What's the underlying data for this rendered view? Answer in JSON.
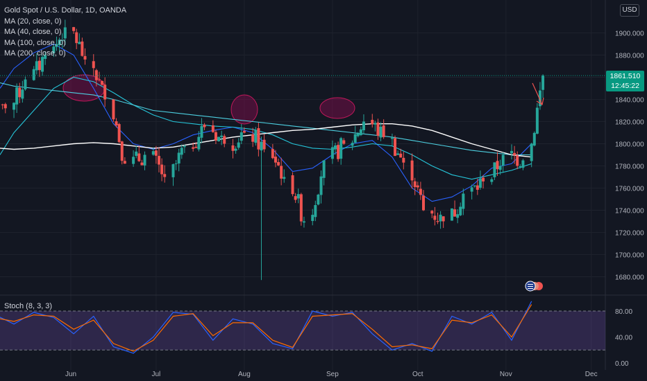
{
  "header": {
    "title": "Gold Spot / U.S. Dollar, 1D, OANDA",
    "currency": "USD",
    "price_tag": "1861.510",
    "countdown": "12:45:22",
    "stoch_label": "Stoch (8, 3, 3)"
  },
  "legend": [
    {
      "label": "MA (20, close, 0)",
      "color": "#2962ff"
    },
    {
      "label": "MA (40, close, 0)",
      "color": "#26c6da"
    },
    {
      "label": "MA (100, close, 0)",
      "color": "#4dd0e1"
    },
    {
      "label": "MA (200, close, 0)",
      "color": "#ffffff"
    }
  ],
  "colors": {
    "background": "#131722",
    "up": "#26a69a",
    "down": "#ef5350",
    "grid": "#1e222d",
    "price_line": "#089981",
    "stoch_fill": "#7e57c2"
  },
  "chart_data": [
    {
      "type": "candlestick",
      "title": "Gold Spot / U.S. Dollar, 1D, OANDA",
      "x_tick_labels": [
        "Jun",
        "Jul",
        "Aug",
        "Sep",
        "Oct",
        "Nov",
        "Dec"
      ],
      "y_tick_labels": [
        "1680.000",
        "1700.000",
        "1720.000",
        "1740.000",
        "1760.000",
        "1780.000",
        "1800.000",
        "1820.000",
        "1840.000",
        "1860.000",
        "1880.000",
        "1900.000"
      ],
      "ylim": [
        1665,
        1925
      ],
      "last_price": 1861.51,
      "x": [
        "2023-05-05",
        "2023-05-12",
        "2023-05-19",
        "2023-05-26",
        "2023-06-02",
        "2023-06-09",
        "2023-06-16",
        "2023-06-23",
        "2023-06-30",
        "2023-07-07",
        "2023-07-14",
        "2023-07-21",
        "2023-07-28",
        "2023-08-04",
        "2023-08-11",
        "2023-08-18",
        "2023-08-25",
        "2023-09-01",
        "2023-09-08",
        "2023-09-15",
        "2023-09-22",
        "2023-09-29",
        "2023-10-06",
        "2023-10-13",
        "2023-10-20",
        "2023-10-27",
        "2023-11-03",
        "2023-11-10"
      ],
      "close_weekly_approx": [
        1832,
        1858,
        1880,
        1905,
        1876,
        1840,
        1782,
        1790,
        1770,
        1798,
        1815,
        1800,
        1810,
        1795,
        1770,
        1730,
        1785,
        1800,
        1820,
        1806,
        1783,
        1740,
        1730,
        1755,
        1766,
        1790,
        1785,
        1861.51
      ],
      "moving_averages": [
        {
          "name": "MA (20, close, 0)",
          "values": [
            1850,
            1868,
            1882,
            1890,
            1880,
            1850,
            1818,
            1800,
            1795,
            1800,
            1808,
            1812,
            1815,
            1810,
            1795,
            1775,
            1778,
            1790,
            1800,
            1803,
            1788,
            1760,
            1748,
            1752,
            1762,
            1778,
            1782,
            1800
          ]
        },
        {
          "name": "MA (40, close, 0)",
          "values": [
            1790,
            1810,
            1830,
            1850,
            1860,
            1856,
            1846,
            1835,
            1826,
            1820,
            1818,
            1816,
            1815,
            1813,
            1808,
            1800,
            1796,
            1795,
            1797,
            1800,
            1798,
            1790,
            1780,
            1772,
            1768,
            1772,
            1776,
            1782
          ]
        },
        {
          "name": "MA (100, close, 0)",
          "values": [
            1855,
            1852,
            1850,
            1848,
            1846,
            1844,
            1840,
            1835,
            1830,
            1828,
            1826,
            1824,
            1822,
            1820,
            1818,
            1816,
            1814,
            1812,
            1810,
            1808,
            1806,
            1803,
            1800,
            1797,
            1794,
            1792,
            1790,
            1790
          ]
        },
        {
          "name": "MA (200, close, 0)",
          "values": [
            1796,
            1795,
            1796,
            1798,
            1800,
            1801,
            1800,
            1798,
            1796,
            1797,
            1800,
            1803,
            1806,
            1808,
            1810,
            1812,
            1813,
            1815,
            1817,
            1818,
            1818,
            1816,
            1812,
            1806,
            1800,
            1795,
            1790,
            1788
          ]
        }
      ]
    },
    {
      "type": "line",
      "title": "Stoch (8, 3, 3)",
      "y_tick_labels": [
        "0.00",
        "40.00",
        "80.00"
      ],
      "ylim": [
        0,
        100
      ],
      "bands": [
        20,
        80
      ],
      "x": [
        "2023-05-05",
        "2023-05-12",
        "2023-05-19",
        "2023-05-26",
        "2023-06-02",
        "2023-06-09",
        "2023-06-16",
        "2023-06-23",
        "2023-06-30",
        "2023-07-07",
        "2023-07-14",
        "2023-07-21",
        "2023-07-28",
        "2023-08-04",
        "2023-08-11",
        "2023-08-18",
        "2023-08-25",
        "2023-09-01",
        "2023-09-08",
        "2023-09-15",
        "2023-09-22",
        "2023-09-29",
        "2023-10-06",
        "2023-10-13",
        "2023-10-20",
        "2023-10-27",
        "2023-11-03",
        "2023-11-10"
      ],
      "series": [
        {
          "values": [
            75,
            60,
            78,
            70,
            45,
            72,
            25,
            15,
            40,
            78,
            75,
            35,
            68,
            60,
            30,
            22,
            80,
            72,
            78,
            45,
            20,
            30,
            18,
            72,
            60,
            78,
            35,
            95
          ]
        },
        {
          "values": [
            70,
            64,
            74,
            72,
            52,
            66,
            30,
            18,
            35,
            72,
            76,
            42,
            62,
            62,
            35,
            24,
            72,
            74,
            76,
            52,
            25,
            28,
            22,
            66,
            62,
            74,
            40,
            90
          ]
        }
      ]
    }
  ]
}
